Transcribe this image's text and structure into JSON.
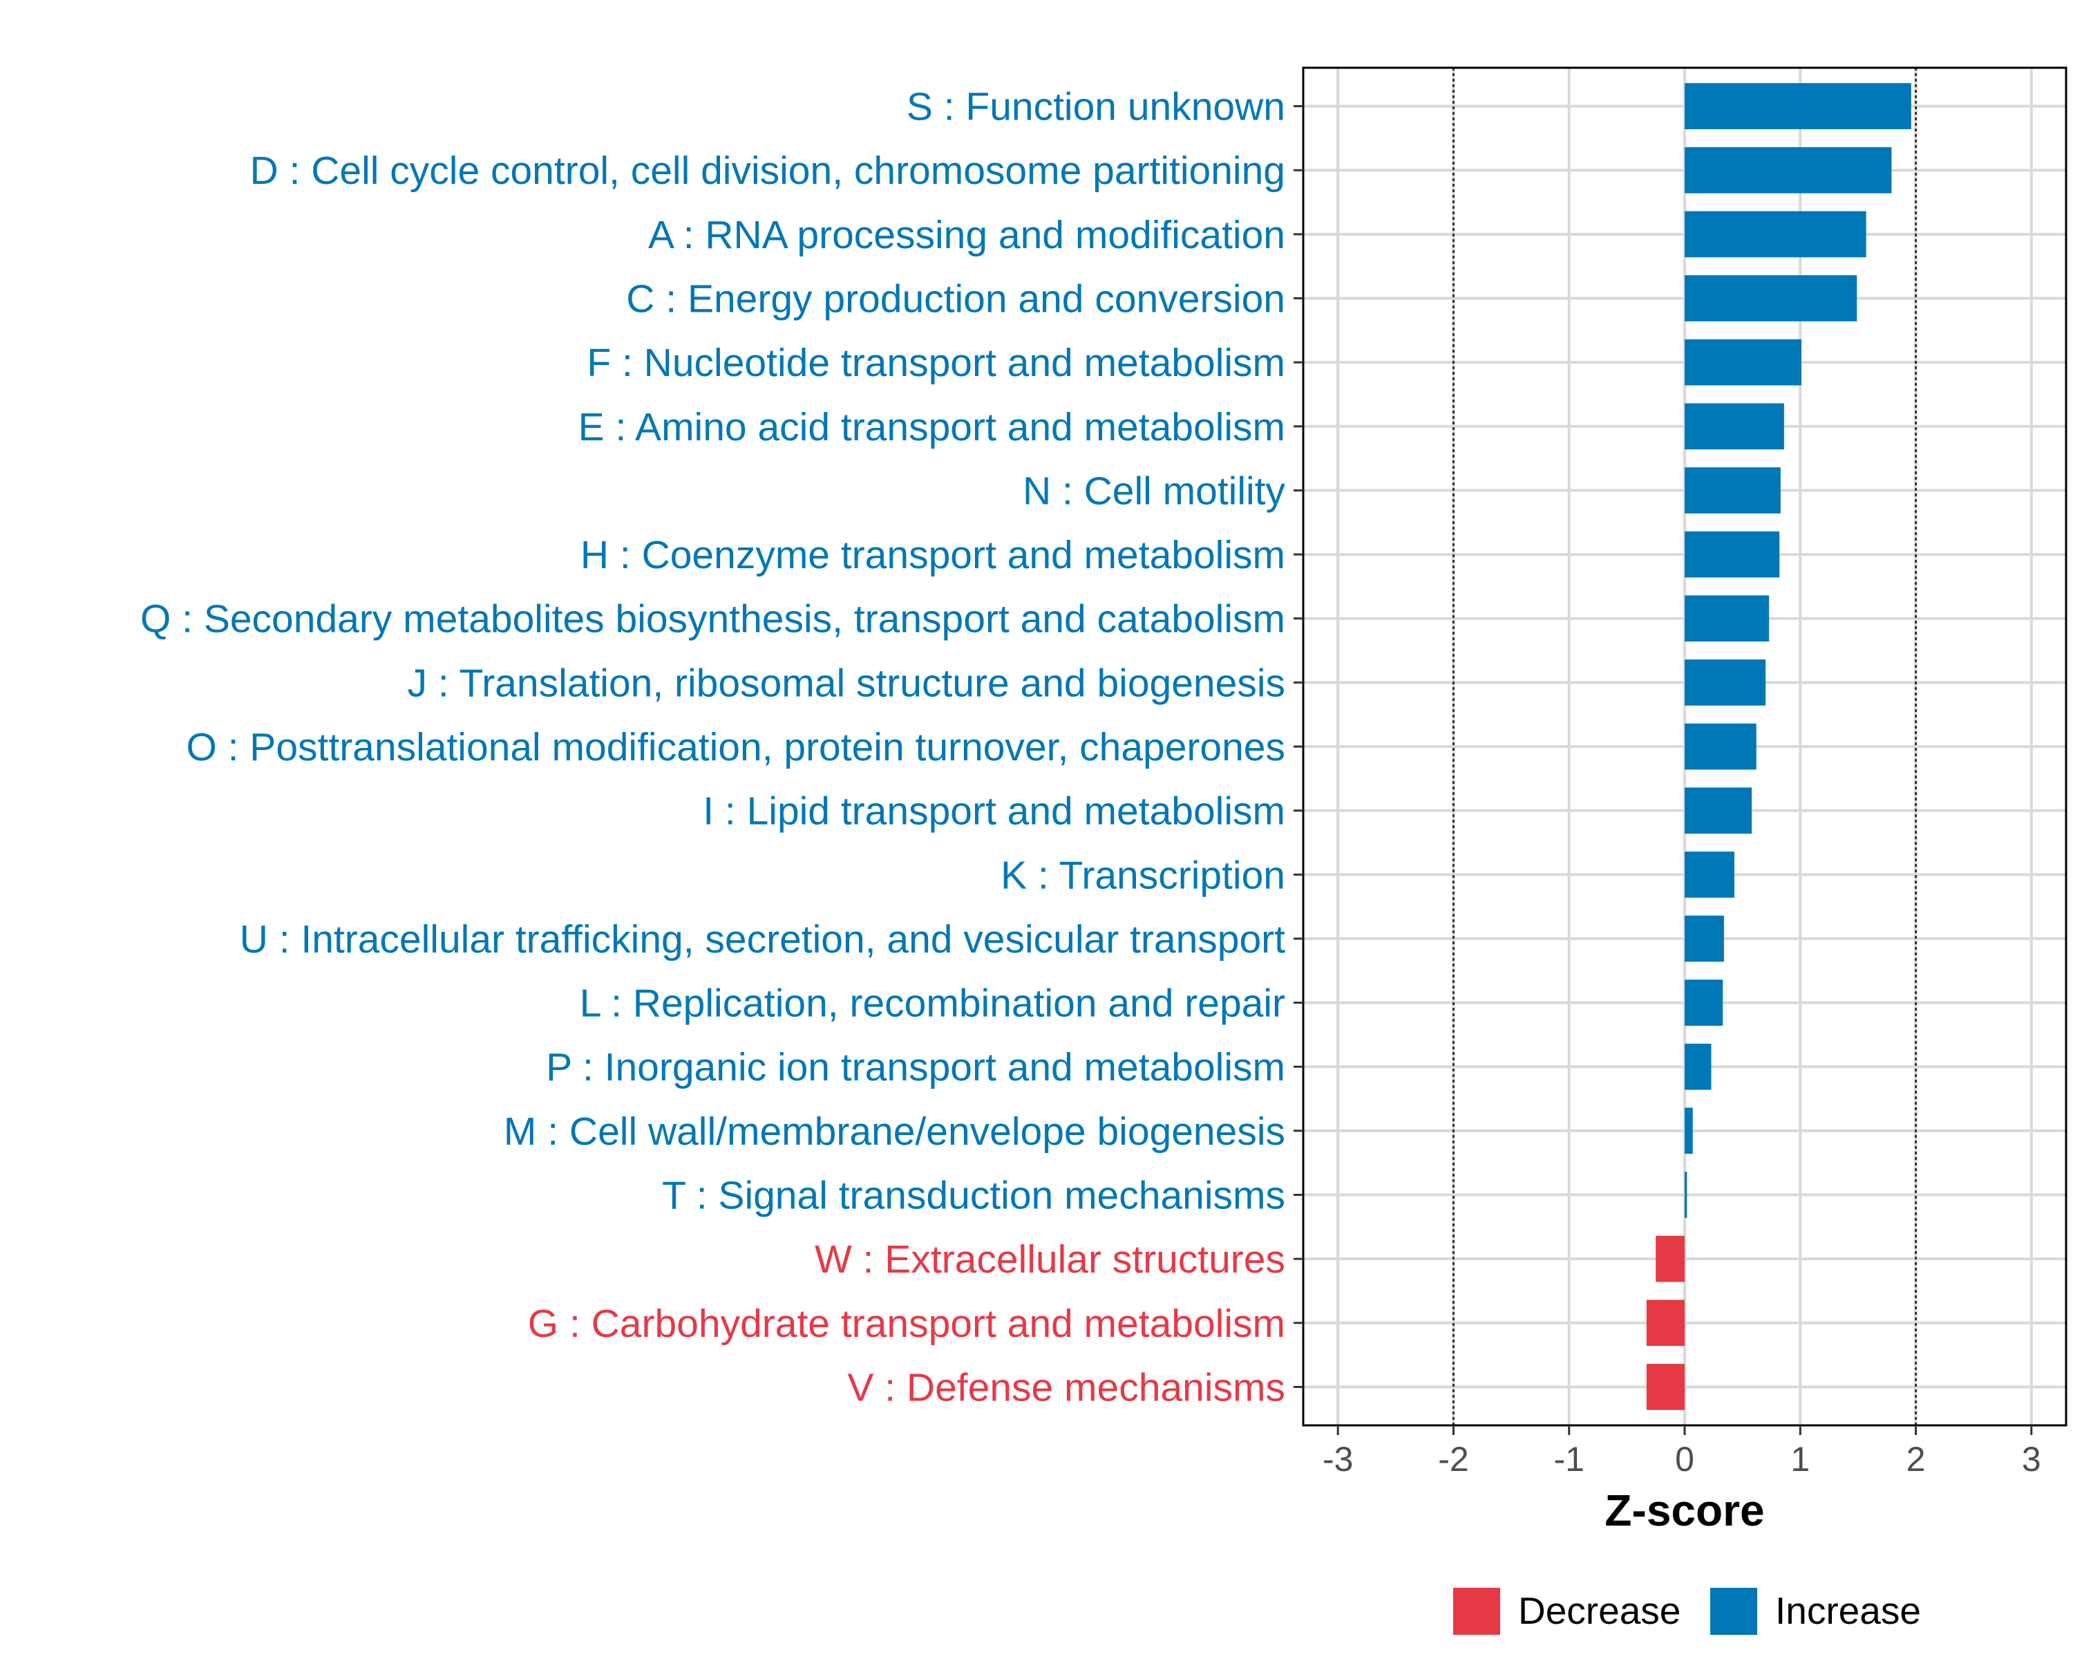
{
  "chart_data": {
    "type": "bar",
    "orientation": "horizontal",
    "xlabel": "Z-score",
    "xlim": [
      -3.3,
      3.3
    ],
    "xticks": [
      -3,
      -2,
      -1,
      0,
      1,
      2,
      3
    ],
    "xtick_labels": [
      "-3",
      "-2",
      "-1",
      "0",
      "1",
      "2",
      "3"
    ],
    "reference_lines": [
      -2,
      2
    ],
    "grid": true,
    "colors": {
      "Decrease": "#E63946",
      "Increase": "#0077B6"
    },
    "categories": [
      "S : Function unknown",
      "D : Cell cycle control, cell division, chromosome partitioning",
      "A : RNA processing and modification",
      "C : Energy production and conversion",
      "F : Nucleotide transport and metabolism",
      "E : Amino acid transport and metabolism",
      "N : Cell motility",
      "H : Coenzyme transport and metabolism",
      "Q : Secondary metabolites biosynthesis, transport and catabolism",
      "J : Translation, ribosomal structure and biogenesis",
      "O : Posttranslational modification, protein turnover, chaperones",
      "I : Lipid transport and metabolism",
      "K : Transcription",
      "U : Intracellular trafficking, secretion, and vesicular transport",
      "L : Replication, recombination and repair",
      "P : Inorganic ion transport and metabolism",
      "M : Cell wall/membrane/envelope biogenesis",
      "T : Signal transduction mechanisms",
      "W : Extracellular structures",
      "G : Carbohydrate transport and metabolism",
      "V : Defense mechanisms"
    ],
    "values": [
      1.96,
      1.79,
      1.57,
      1.49,
      1.01,
      0.86,
      0.83,
      0.82,
      0.73,
      0.7,
      0.62,
      0.58,
      0.43,
      0.34,
      0.33,
      0.23,
      0.07,
      0.02,
      -0.25,
      -0.33,
      -0.33
    ],
    "groups": [
      "Increase",
      "Increase",
      "Increase",
      "Increase",
      "Increase",
      "Increase",
      "Increase",
      "Increase",
      "Increase",
      "Increase",
      "Increase",
      "Increase",
      "Increase",
      "Increase",
      "Increase",
      "Increase",
      "Increase",
      "Increase",
      "Decrease",
      "Decrease",
      "Decrease"
    ],
    "legend": {
      "position": "bottom",
      "entries": [
        {
          "label": "Decrease",
          "color": "#E63946"
        },
        {
          "label": "Increase",
          "color": "#0077B6"
        }
      ]
    }
  }
}
